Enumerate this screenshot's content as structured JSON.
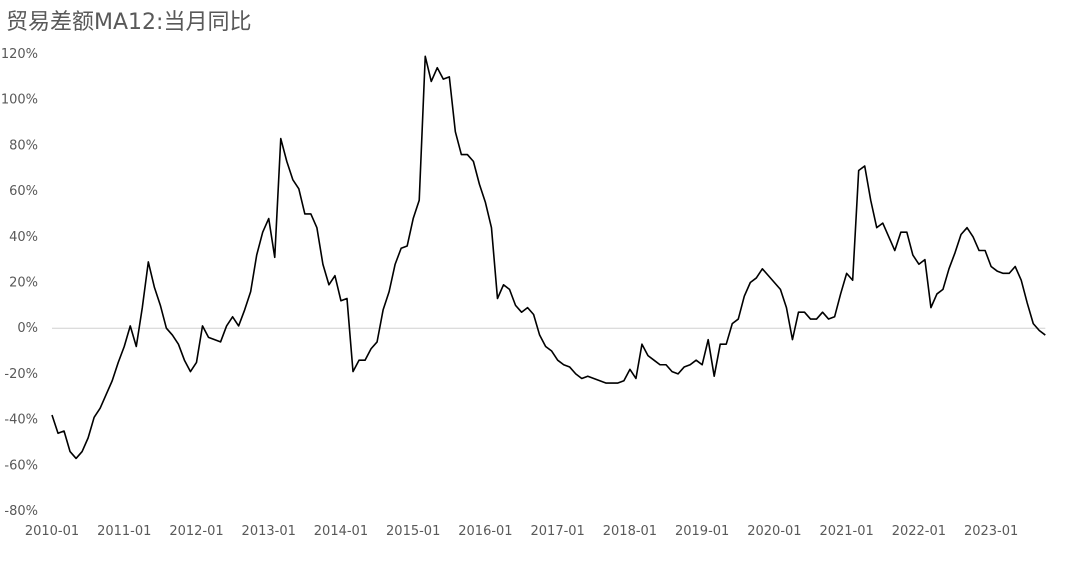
{
  "chart_data": {
    "type": "line",
    "title": "贸易差额MA12:当月同比",
    "xlabel": "",
    "ylabel": "",
    "ylim": [
      -80,
      120
    ],
    "y_ticks": [
      120,
      100,
      80,
      60,
      40,
      20,
      0,
      -20,
      -40,
      -60,
      -80
    ],
    "y_tick_labels": [
      "120%",
      "100%",
      "80%",
      "60%",
      "40%",
      "20%",
      "0%",
      "-20%",
      "-40%",
      "-60%",
      "-80%"
    ],
    "x_tick_labels": [
      "2010-01",
      "2011-01",
      "2012-01",
      "2013-01",
      "2014-01",
      "2015-01",
      "2016-01",
      "2017-01",
      "2018-01",
      "2019-01",
      "2020-01",
      "2021-01",
      "2022-01",
      "2023-01"
    ],
    "gridlines": false,
    "zero_line": true,
    "legend": "none",
    "line_color": "#000000",
    "x_start": "2010-01",
    "x_end": "2023-09",
    "values": [
      -38,
      -46,
      -45,
      -54,
      -57,
      -54,
      -48,
      -39,
      -35,
      -29,
      -23,
      -15,
      -8,
      1,
      -8,
      9,
      29,
      18,
      10,
      0,
      -3,
      -7,
      -14,
      -19,
      -15,
      1,
      -4,
      -5,
      -6,
      1,
      5,
      1,
      8,
      16,
      32,
      42,
      48,
      31,
      83,
      73,
      65,
      61,
      50,
      50,
      44,
      28,
      19,
      23,
      12,
      13,
      -19,
      -14,
      -14,
      -9,
      -6,
      8,
      16,
      28,
      35,
      36,
      48,
      56,
      119,
      108,
      114,
      109,
      110,
      86,
      76,
      76,
      73,
      63,
      55,
      44,
      13,
      19,
      17,
      10,
      7,
      9,
      6,
      -3,
      -8,
      -10,
      -14,
      -16,
      -17,
      -20,
      -22,
      -21,
      -22,
      -23,
      -24,
      -24,
      -24,
      -23,
      -18,
      -22,
      -7,
      -12,
      -14,
      -16,
      -16,
      -19,
      -20,
      -17,
      -16,
      -14,
      -16,
      -5,
      -21,
      -7,
      -7,
      2,
      4,
      14,
      20,
      22,
      26,
      23,
      20,
      17,
      9,
      -5,
      7,
      7,
      4,
      4,
      7,
      4,
      5,
      15,
      24,
      21,
      69,
      71,
      56,
      44,
      46,
      40,
      34,
      42,
      42,
      32,
      28,
      30,
      9,
      15,
      17,
      26,
      33,
      41,
      44,
      40,
      34,
      34,
      27,
      25,
      24,
      24,
      27,
      21,
      11,
      2,
      -1,
      -3
    ]
  }
}
